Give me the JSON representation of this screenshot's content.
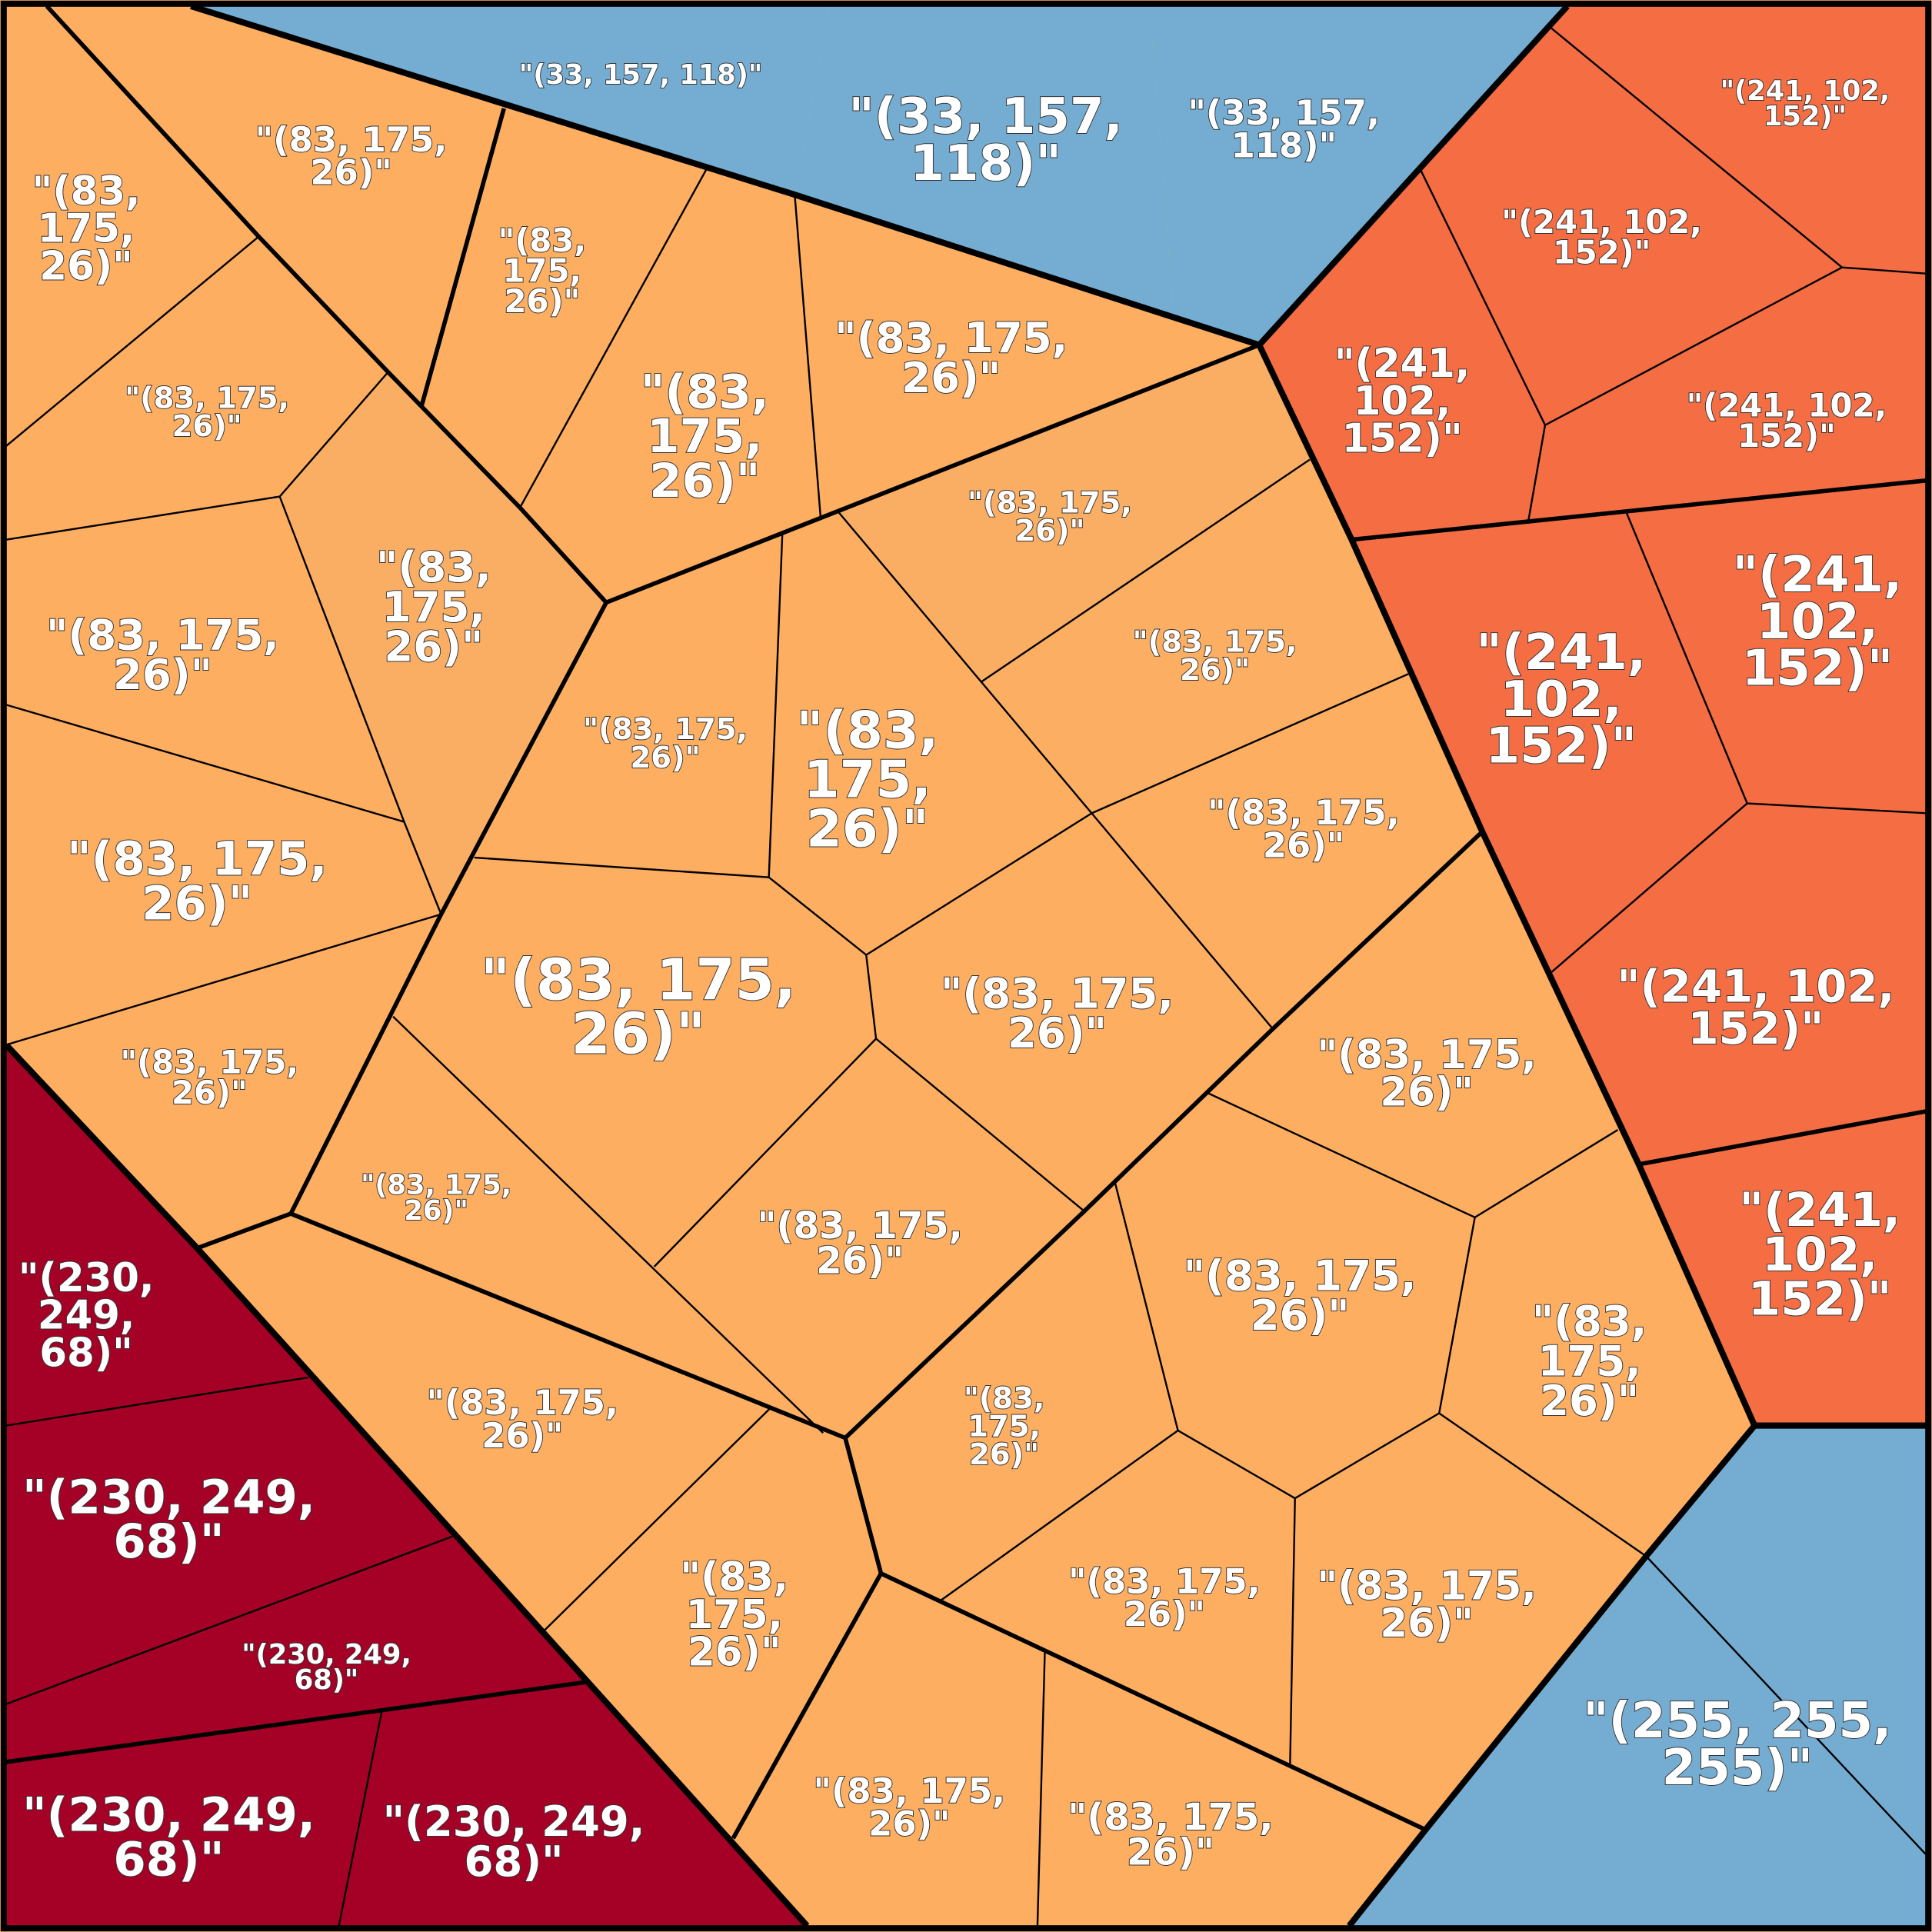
{
  "colors": {
    "orange": "#fdae61",
    "orange_alt": "#f9ae64",
    "red": "#f46d43",
    "dark_red": "#a50026",
    "blue": "#74add1",
    "border": "#000000"
  },
  "cells": [
    {
      "group": "blue",
      "lines": [
        "\"(33, 157, 118)\""
      ]
    },
    {
      "group": "blue",
      "lines": [
        "\"(33, 157,",
        "118)\""
      ]
    },
    {
      "group": "blue",
      "lines": [
        "\"(33, 157,",
        "118)\""
      ]
    },
    {
      "group": "red",
      "lines": [
        "\"(241, 102,",
        "152)\""
      ]
    },
    {
      "group": "red",
      "lines": [
        "\"(241, 102,",
        "152)\""
      ]
    },
    {
      "group": "red",
      "lines": [
        "\"(241,",
        "102,",
        "152)\""
      ]
    },
    {
      "group": "red",
      "lines": [
        "\"(241, 102,",
        "152)\""
      ]
    },
    {
      "group": "red",
      "lines": [
        "\"(241,",
        "102,",
        "152)\""
      ]
    },
    {
      "group": "red",
      "lines": [
        "\"(241,",
        "102,",
        "152)\""
      ]
    },
    {
      "group": "red",
      "lines": [
        "\"(241, 102,",
        "152)\""
      ]
    },
    {
      "group": "red",
      "lines": [
        "\"(241,",
        "102,",
        "152)\""
      ]
    },
    {
      "group": "blue",
      "lines": [
        "\"(255, 255,",
        "255)\""
      ]
    },
    {
      "group": "dark_red",
      "lines": [
        "\"(230,",
        "249,",
        "68)\""
      ]
    },
    {
      "group": "dark_red",
      "lines": [
        "\"(230, 249,",
        "68)\""
      ]
    },
    {
      "group": "dark_red",
      "lines": [
        "\"(230, 249,",
        "68)\""
      ]
    },
    {
      "group": "dark_red",
      "lines": [
        "\"(230, 249,",
        "68)\""
      ]
    },
    {
      "group": "dark_red",
      "lines": [
        "\"(230, 249,",
        "68)\""
      ]
    },
    {
      "group": "orange",
      "lines": [
        "\"(83,",
        "175,",
        "26)\""
      ]
    },
    {
      "group": "orange",
      "lines": [
        "\"(83, 175,",
        "26)\""
      ]
    },
    {
      "group": "orange",
      "lines": [
        "\"(83,",
        "175,",
        "26)\""
      ]
    },
    {
      "group": "orange",
      "lines": [
        "\"(83, 175,",
        "26)\""
      ]
    },
    {
      "group": "orange",
      "lines": [
        "\"(83,",
        "175,",
        "26)\""
      ]
    },
    {
      "group": "orange",
      "lines": [
        "\"(83, 175,",
        "26)\""
      ]
    },
    {
      "group": "orange",
      "lines": [
        "\"(83,",
        "175,",
        "26)\""
      ]
    },
    {
      "group": "orange",
      "lines": [
        "\"(83, 175,",
        "26)\""
      ]
    },
    {
      "group": "orange",
      "lines": [
        "\"(83, 175,",
        "26)\""
      ]
    },
    {
      "group": "orange",
      "lines": [
        "\"(83, 175,",
        "26)\""
      ]
    },
    {
      "group": "orange",
      "lines": [
        "\"(83, 175,",
        "26)\""
      ]
    },
    {
      "group": "orange",
      "lines": [
        "\"(83,",
        "175,",
        "26)\""
      ]
    },
    {
      "group": "orange",
      "lines": [
        "\"(83, 175,",
        "26)\""
      ]
    },
    {
      "group": "orange",
      "lines": [
        "\"(83, 175,",
        "26)\""
      ]
    },
    {
      "group": "orange",
      "lines": [
        "\"(83, 175,",
        "26)\""
      ]
    },
    {
      "group": "orange",
      "lines": [
        "\"(83, 175,",
        "26)\""
      ]
    },
    {
      "group": "orange",
      "lines": [
        "\"(83, 175,",
        "26)\""
      ]
    },
    {
      "group": "orange",
      "lines": [
        "\"(83, 175,",
        "26)\""
      ]
    },
    {
      "group": "orange",
      "lines": [
        "\"(83, 175,",
        "26)\""
      ]
    },
    {
      "group": "orange",
      "lines": [
        "\"(83, 175,",
        "26)\""
      ]
    },
    {
      "group": "orange",
      "lines": [
        "\"(83, 175,",
        "26)\""
      ]
    },
    {
      "group": "orange",
      "lines": [
        "\"(83,",
        "175,",
        "26)\""
      ]
    },
    {
      "group": "orange",
      "lines": [
        "\"(83,",
        "175,",
        "26)\""
      ]
    },
    {
      "group": "orange",
      "lines": [
        "\"(83, 175,",
        "26)\""
      ]
    },
    {
      "group": "orange",
      "lines": [
        "\"(83,",
        "175,",
        "26)\""
      ]
    },
    {
      "group": "orange",
      "lines": [
        "\"(83, 175,",
        "26)\""
      ]
    },
    {
      "group": "orange",
      "lines": [
        "\"(83, 175,",
        "26)\""
      ]
    },
    {
      "group": "orange",
      "lines": [
        "\"(83, 175,",
        "26)\""
      ]
    },
    {
      "group": "orange",
      "lines": [
        "\"(83, 175,",
        "26)\""
      ]
    }
  ]
}
